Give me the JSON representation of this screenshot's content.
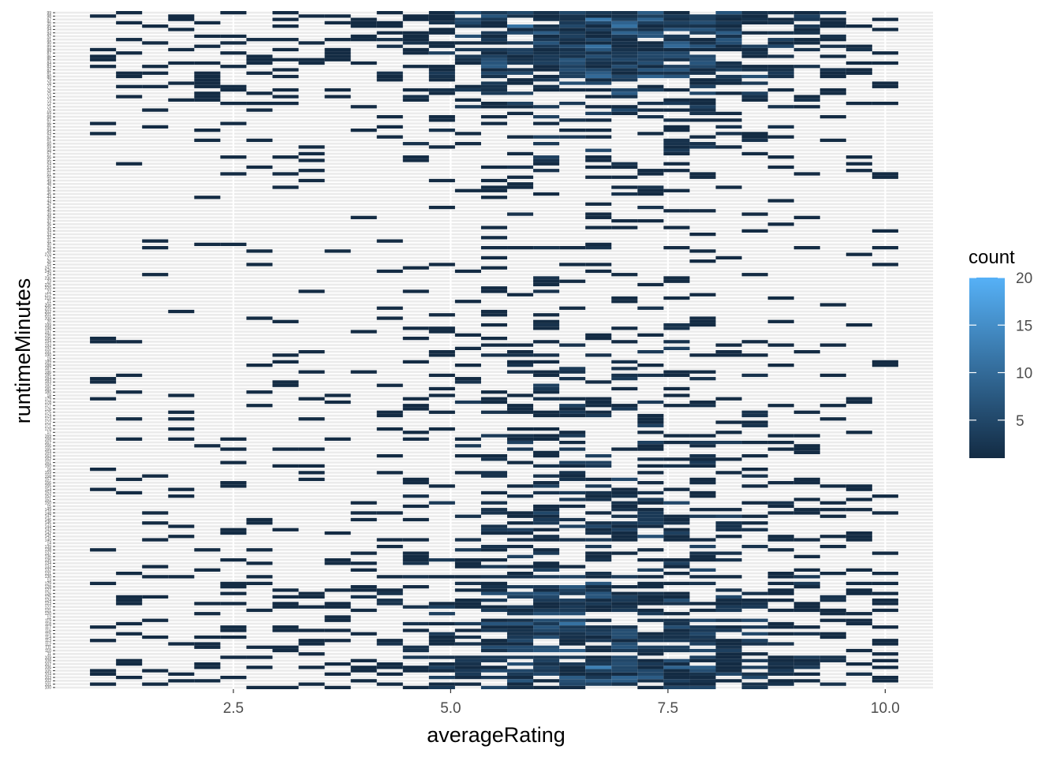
{
  "chart_data": {
    "type": "heatmap",
    "title": "",
    "xlabel": "averageRating",
    "ylabel": "runtimeMinutes",
    "xlim": [
      0.45,
      10.55
    ],
    "x_ticks": [
      2.5,
      5.0,
      7.5,
      10.0
    ],
    "x_tick_labels": [
      "2.5",
      "5.0",
      "7.5",
      "10.0"
    ],
    "x_bin_width": 0.3,
    "y_categories": [
      "100",
      "101",
      "102",
      "103",
      "104",
      "105",
      "106",
      "107",
      "108",
      "109",
      "11",
      "110",
      "111",
      "112",
      "113",
      "114",
      "115",
      "116",
      "117",
      "118",
      "119",
      "12",
      "120",
      "121",
      "122",
      "123",
      "124",
      "125",
      "126",
      "127",
      "128",
      "129",
      "13",
      "130",
      "131",
      "132",
      "133",
      "134",
      "135",
      "136",
      "137",
      "138",
      "139",
      "14",
      "140",
      "141",
      "142",
      "143",
      "144",
      "145",
      "146",
      "147",
      "148",
      "149",
      "15",
      "150",
      "151",
      "152",
      "153",
      "154",
      "155",
      "156",
      "157",
      "158",
      "159",
      "16",
      "160",
      "161",
      "162",
      "163",
      "164",
      "165",
      "166",
      "167",
      "168",
      "169",
      "17",
      "170",
      "171",
      "172",
      "173",
      "174",
      "175",
      "176",
      "177",
      "178",
      "179",
      "18",
      "180",
      "181",
      "182",
      "183",
      "184",
      "185",
      "186",
      "187",
      "188",
      "189",
      "19",
      "190",
      "191",
      "192",
      "193",
      "194",
      "195",
      "196",
      "197",
      "198",
      "199",
      "20",
      "200",
      "201",
      "202",
      "205",
      "206",
      "21",
      "210",
      "212",
      "22",
      "220",
      "225",
      "23",
      "230",
      "24",
      "240",
      "242",
      "25",
      "26",
      "27",
      "270",
      "28",
      "29",
      "30",
      "31",
      "32",
      "33",
      "34",
      "35",
      "36",
      "37",
      "38",
      "39",
      "40",
      "41",
      "42",
      "43",
      "44",
      "45",
      "46",
      "47",
      "48",
      "49",
      "50",
      "51",
      "52",
      "53",
      "54",
      "55",
      "56",
      "57",
      "58",
      "59",
      "60",
      "61",
      "62",
      "63",
      "64",
      "65",
      "66",
      "67",
      "68",
      "69",
      "70",
      "71",
      "72",
      "73",
      "74",
      "75",
      "76",
      "77",
      "78",
      "79",
      "80",
      "81",
      "82",
      "83",
      "84",
      "85",
      "86",
      "87",
      "88",
      "89",
      "90",
      "91",
      "92",
      "93",
      "94",
      "95",
      "96",
      "97",
      "98",
      "99"
    ],
    "value_legend": {
      "title": "count",
      "ticks": [
        5,
        10,
        15,
        20
      ],
      "range": [
        1,
        20
      ],
      "low_color": "#132B43",
      "high_color": "#56B1F7"
    },
    "grid": true,
    "legend_position": "right",
    "colors": {
      "panel_background": "#ffffff",
      "grid": "#ebebeb"
    }
  }
}
